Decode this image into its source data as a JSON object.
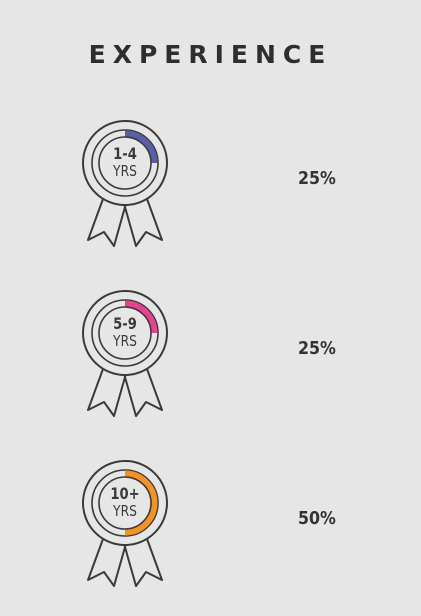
{
  "title": "EXPERIENCE",
  "chart_data": {
    "type": "pie",
    "categories": [
      "1-4 YRS",
      "5-9 YRS",
      "10+ YRS"
    ],
    "values": [
      25,
      25,
      50
    ],
    "value_labels": [
      "25%",
      "25%",
      "50%"
    ],
    "colors": [
      "#5b5ea6",
      "#e5428f",
      "#f39323"
    ],
    "items": [
      {
        "range": "1-4",
        "unit": "YRS",
        "value": 25,
        "label": "25%",
        "color": "#5b5ea6"
      },
      {
        "range": "5-9",
        "unit": "YRS",
        "value": 25,
        "label": "25%",
        "color": "#e5428f"
      },
      {
        "range": "10+",
        "unit": "YRS",
        "value": 50,
        "label": "50%",
        "color": "#f39323"
      }
    ]
  }
}
